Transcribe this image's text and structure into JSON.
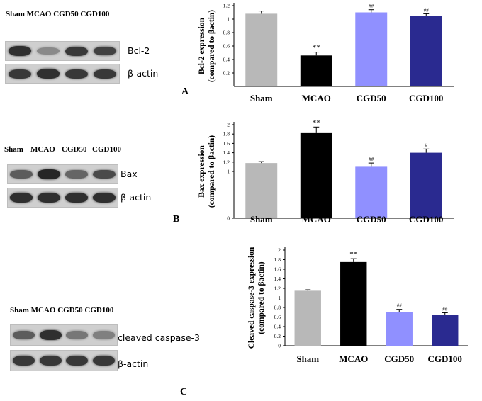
{
  "panels": [
    {
      "letter": "A",
      "lane_header": "Sham MCAO CGD50 CGD100",
      "blot_labels": [
        "Bcl-2",
        "β-actin"
      ],
      "band_intensity": [
        [
          0.85,
          0.35,
          0.8,
          0.75
        ],
        [
          0.8,
          0.85,
          0.8,
          0.8
        ]
      ]
    },
    {
      "letter": "B",
      "lane_header_items": [
        "Sham",
        "MCAO",
        "CGD50",
        "CGD100"
      ],
      "blot_labels": [
        "Bax",
        "β-actin"
      ],
      "band_intensity": [
        [
          0.6,
          0.9,
          0.55,
          0.7
        ],
        [
          0.85,
          0.85,
          0.85,
          0.85
        ]
      ]
    },
    {
      "letter": "C",
      "lane_header": "Sham MCAO CGD50 CGD100",
      "blot_labels": [
        "cleaved caspase-3",
        "β-actin"
      ],
      "band_intensity": [
        [
          0.6,
          0.85,
          0.45,
          0.4
        ],
        [
          0.8,
          0.8,
          0.8,
          0.8
        ]
      ]
    }
  ],
  "chart_data": [
    {
      "type": "bar",
      "ylabel_lines": [
        "Bcl-2 expression",
        "(compared to βactin)"
      ],
      "categories": [
        "Sham",
        "MCAO",
        "CGD50",
        "CGD100"
      ],
      "values": [
        1.08,
        0.46,
        1.1,
        1.05
      ],
      "errors": [
        0.04,
        0.05,
        0.04,
        0.03
      ],
      "colors": [
        "#b8b8b8",
        "#000000",
        "#9090ff",
        "#2a2a90"
      ],
      "annotations": [
        "",
        "**",
        "##",
        "##"
      ],
      "ylim": [
        0,
        1.2
      ],
      "yticks": [
        0.2,
        0.4,
        0.6,
        0.8,
        1,
        1.2
      ],
      "ytick_labels": [
        "0.2",
        "0.4",
        "0.6",
        "0.8",
        "1",
        "1.2"
      ],
      "grid": false
    },
    {
      "type": "bar",
      "ylabel_lines": [
        "Bax expression",
        "(compared to βactin)"
      ],
      "categories": [
        "Sham",
        "MCAO",
        "CGD50",
        "CGD100"
      ],
      "values": [
        1.18,
        1.82,
        1.1,
        1.4
      ],
      "errors": [
        0.03,
        0.13,
        0.08,
        0.08
      ],
      "colors": [
        "#b8b8b8",
        "#000000",
        "#9090ff",
        "#2a2a90"
      ],
      "annotations": [
        "",
        "**",
        "##",
        "#"
      ],
      "ylim": [
        0,
        2
      ],
      "yticks": [
        0,
        1,
        1.2,
        1.4,
        1.6,
        1.8,
        2
      ],
      "ytick_labels": [
        "0",
        "1",
        "1.2",
        "1.4",
        "1.6",
        "1.8",
        "2"
      ],
      "grid": false
    },
    {
      "type": "bar",
      "ylabel_lines": [
        "Cleaved caspase-3 expression",
        "(compared to βactin)"
      ],
      "categories": [
        "Sham",
        "MCAO",
        "CGD50",
        "CGD100"
      ],
      "values": [
        1.15,
        1.75,
        0.7,
        0.65
      ],
      "errors": [
        0.02,
        0.07,
        0.06,
        0.04
      ],
      "colors": [
        "#b8b8b8",
        "#000000",
        "#9090ff",
        "#2a2a90"
      ],
      "annotations": [
        "",
        "**",
        "##",
        "##"
      ],
      "ylim": [
        0,
        2
      ],
      "yticks": [
        0,
        0.2,
        0.4,
        0.6,
        0.8,
        1,
        1.2,
        1.4,
        1.6,
        1.8,
        2
      ],
      "ytick_labels": [
        "0",
        "0.2",
        "0.4",
        "0.6",
        "0.8",
        "1",
        "1.2",
        "1.4",
        "1.6",
        "1.8",
        "2"
      ],
      "grid": false
    }
  ]
}
